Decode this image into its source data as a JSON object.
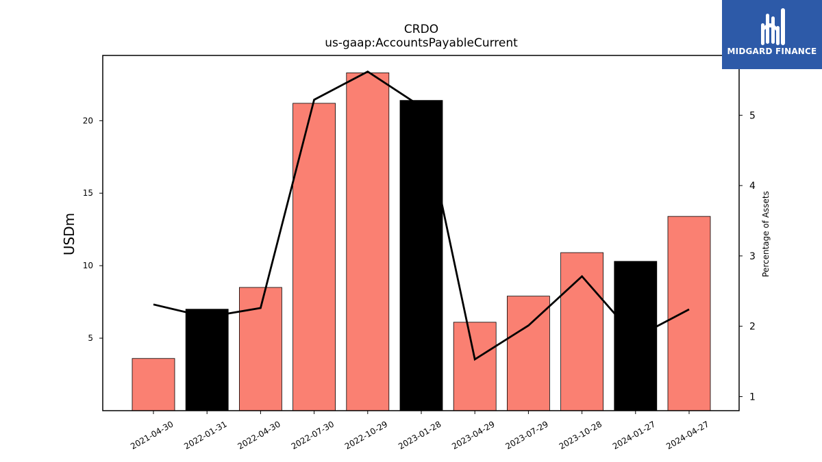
{
  "chart_data": {
    "type": "bar",
    "title": "CRDO",
    "subtitle": "us-gaap:AccountsPayableCurrent",
    "ylabel": "USDm",
    "y2label": "Percentage of Assets",
    "categories": [
      "2021-04-30",
      "2022-01-31",
      "2022-04-30",
      "2022-07-30",
      "2022-10-29",
      "2023-01-28",
      "2023-04-29",
      "2023-07-29",
      "2023-10-28",
      "2024-01-27",
      "2024-04-27"
    ],
    "series": [
      {
        "type": "bar",
        "axis": "left",
        "values": [
          3.6,
          7.0,
          8.5,
          21.2,
          23.3,
          21.4,
          6.1,
          7.9,
          10.9,
          10.3,
          13.4
        ],
        "colors": [
          "#fa8072",
          "#000000",
          "#fa8072",
          "#fa8072",
          "#fa8072",
          "#000000",
          "#fa8072",
          "#fa8072",
          "#fa8072",
          "#000000",
          "#fa8072"
        ]
      },
      {
        "type": "line",
        "axis": "right",
        "color": "#000000",
        "values": [
          2.31,
          2.13,
          2.26,
          5.22,
          5.62,
          5.12,
          1.53,
          2.01,
          2.71,
          1.84,
          2.24
        ]
      }
    ],
    "ylim": [
      0,
      24.5
    ],
    "yticks": [
      5,
      10,
      15,
      20
    ],
    "y2lim": [
      0.8,
      5.85
    ],
    "y2ticks": [
      1,
      2,
      3,
      4,
      5
    ],
    "grid": false
  },
  "logo": {
    "text": "MIDGARD FINANCE",
    "color": "#2d5aa8"
  }
}
